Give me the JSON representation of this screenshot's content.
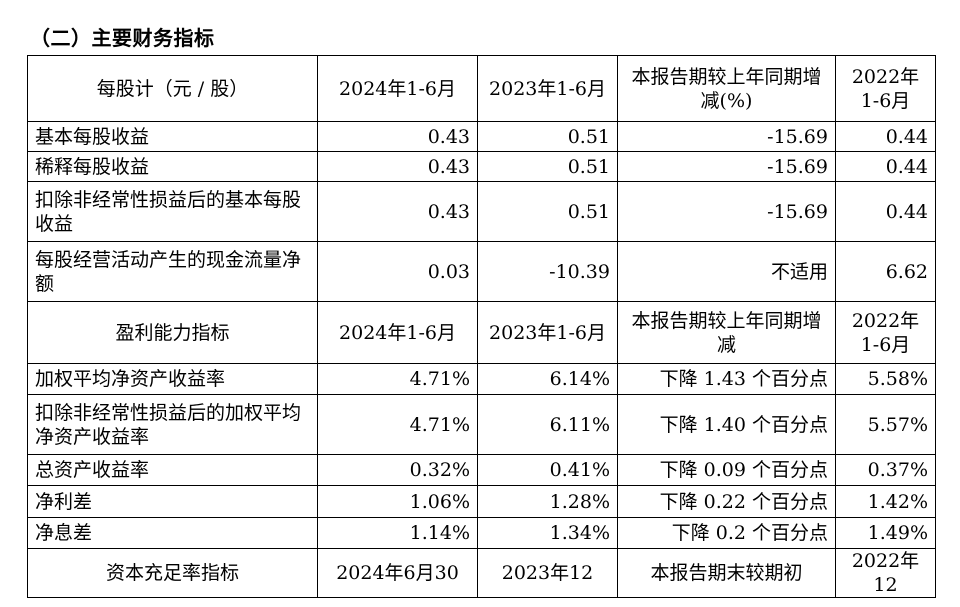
{
  "title": "（二）主要财务指标",
  "sections": [
    {
      "header": [
        "每股计（元 / 股）",
        "2024年1-6月",
        "2023年1-6月",
        "本报告期较上年同期增减(%)",
        "2022年1-6月"
      ],
      "rows": [
        [
          "基本每股收益",
          "0.43",
          "0.51",
          "-15.69",
          "0.44"
        ],
        [
          "稀释每股收益",
          "0.43",
          "0.51",
          "-15.69",
          "0.44"
        ],
        [
          "扣除非经常性损益后的基本每股收益",
          "0.43",
          "0.51",
          "-15.69",
          "0.44"
        ],
        [
          "每股经营活动产生的现金流量净额",
          "0.03",
          "-10.39",
          "不适用",
          "6.62"
        ]
      ]
    },
    {
      "header": [
        "盈利能力指标",
        "2024年1-6月",
        "2023年1-6月",
        "本报告期较上年同期增减",
        "2022年1-6月"
      ],
      "rows": [
        [
          "加权平均净资产收益率",
          "4.71%",
          "6.14%",
          "下降 1.43 个百分点",
          "5.58%"
        ],
        [
          "扣除非经常性损益后的加权平均净资产收益率",
          "4.71%",
          "6.11%",
          "下降 1.40 个百分点",
          "5.57%"
        ],
        [
          "总资产收益率",
          "0.32%",
          "0.41%",
          "下降 0.09 个百分点",
          "0.37%"
        ],
        [
          "净利差",
          "1.06%",
          "1.28%",
          "下降 0.22 个百分点",
          "1.42%"
        ],
        [
          "净息差",
          "1.14%",
          "1.34%",
          "下降 0.2 个百分点",
          "1.49%"
        ]
      ]
    },
    {
      "header": [
        "资本充足率指标",
        "2024年6月30",
        "2023年12",
        "本报告期末较期初",
        "2022年12"
      ],
      "rows": []
    }
  ]
}
